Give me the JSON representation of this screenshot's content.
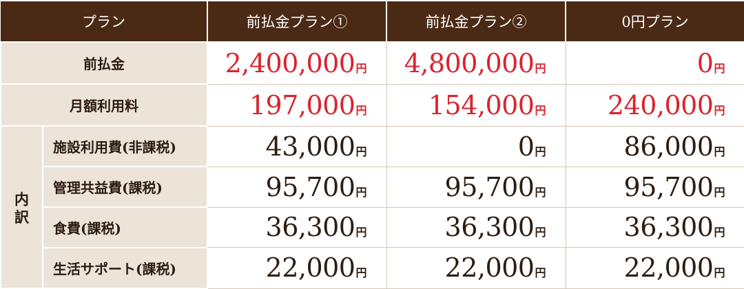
{
  "header": {
    "plan_label": "プラン",
    "plans": [
      "前払金プラン①",
      "前払金プラン②",
      "0円プラン"
    ]
  },
  "unit": "円",
  "rows": {
    "prepayment": {
      "label": "前払金",
      "values": [
        "2,400,000",
        "4,800,000",
        "0"
      ]
    },
    "monthly_fee": {
      "label": "月額利用料",
      "values": [
        "197,000",
        "154,000",
        "240,000"
      ]
    }
  },
  "breakdown": {
    "label_chars": [
      "内",
      "訳"
    ],
    "items": [
      {
        "label": "施設利用費(非課税)",
        "values": [
          "43,000",
          "0",
          "86,000"
        ]
      },
      {
        "label": "管理共益費(課税)",
        "values": [
          "95,700",
          "95,700",
          "95,700"
        ]
      },
      {
        "label": "食費(課税)",
        "values": [
          "36,300",
          "36,300",
          "36,300"
        ]
      },
      {
        "label": "生活サポート(課税)",
        "values": [
          "22,000",
          "22,000",
          "22,000"
        ]
      }
    ]
  },
  "colors": {
    "header_bg": "#4a2a14",
    "label_bg": "#ece3d9",
    "highlight": "#d9232e",
    "text": "#2d1d10"
  }
}
